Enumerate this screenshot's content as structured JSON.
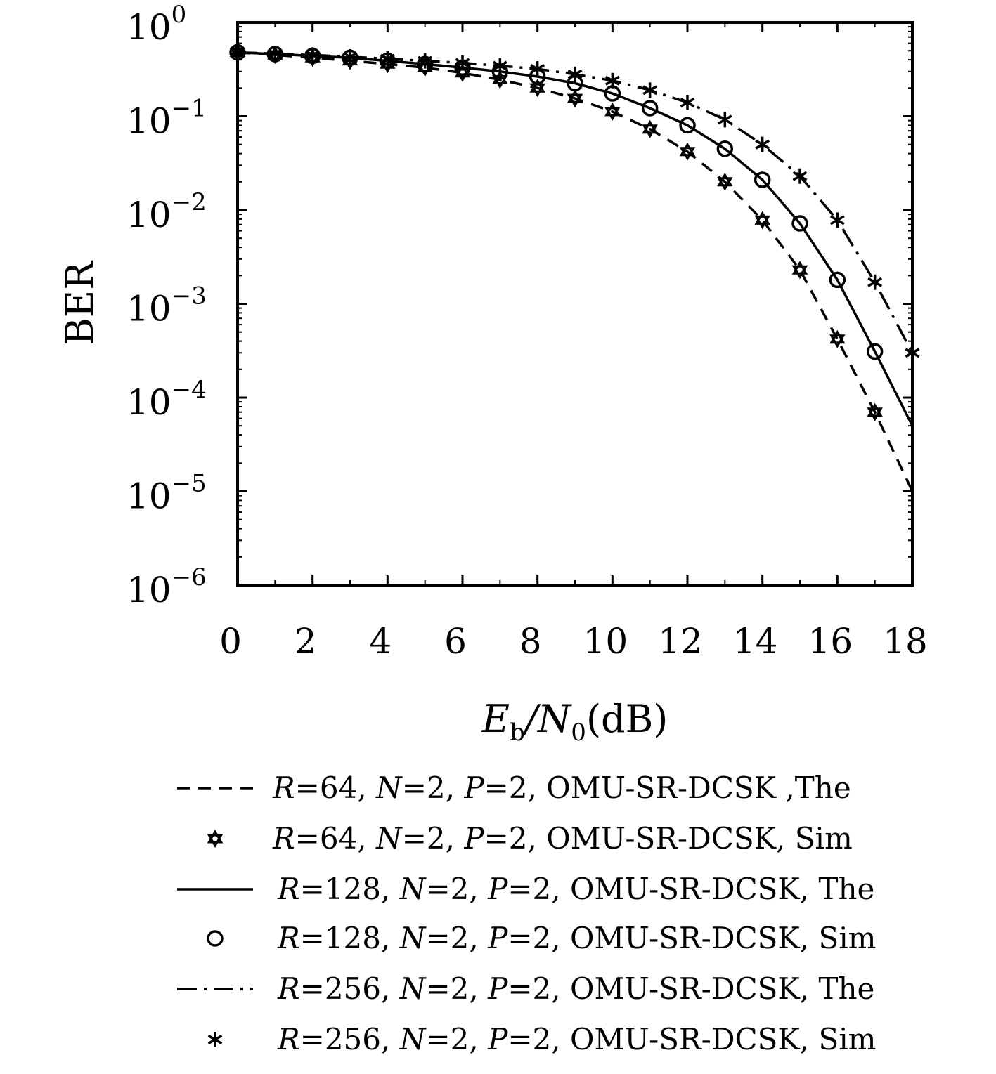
{
  "chart_data": {
    "type": "line",
    "title": "",
    "xlabel": "E_b/N_0(dB)",
    "xlabel_parts": {
      "main": "E",
      "sub1": "b",
      "mid": "/N",
      "sub2": "0",
      "tail": "(dB)"
    },
    "ylabel": "BER",
    "yscale": "log",
    "xlim": [
      0,
      18
    ],
    "ylim": [
      1e-06,
      1
    ],
    "x_ticks": [
      "0",
      "2",
      "4",
      "6",
      "8",
      "10",
      "12",
      "14",
      "16",
      "18"
    ],
    "y_ticks": [
      {
        "base": "10",
        "exp": "0"
      },
      {
        "base": "10",
        "exp": "−1"
      },
      {
        "base": "10",
        "exp": "−2"
      },
      {
        "base": "10",
        "exp": "−3"
      },
      {
        "base": "10",
        "exp": "−4"
      },
      {
        "base": "10",
        "exp": "−5"
      },
      {
        "base": "10",
        "exp": "−6"
      }
    ],
    "grid": false,
    "legend_position": "below",
    "series": [
      {
        "name": "R=64, N=2, P=2, OMU-SR-DCSK ,The",
        "style": "dashed",
        "x": [
          0,
          1,
          2,
          3,
          4,
          5,
          6,
          7,
          8,
          9,
          10,
          11,
          12,
          13,
          14,
          15,
          16,
          17,
          18
        ],
        "y": [
          0.48,
          0.45,
          0.42,
          0.39,
          0.36,
          0.33,
          0.29,
          0.245,
          0.2,
          0.155,
          0.112,
          0.073,
          0.042,
          0.02,
          0.0078,
          0.0023,
          0.00042,
          7e-05,
          1e-05
        ]
      },
      {
        "name": "R=64, N=2, P=2, OMU-SR-DCSK, Sim",
        "style": "marker",
        "marker": "star6",
        "x": [
          0,
          1,
          2,
          3,
          4,
          5,
          6,
          7,
          8,
          9,
          10,
          11,
          12,
          13,
          14,
          15,
          16,
          17
        ],
        "y": [
          0.48,
          0.45,
          0.42,
          0.39,
          0.36,
          0.33,
          0.29,
          0.245,
          0.2,
          0.155,
          0.112,
          0.073,
          0.042,
          0.02,
          0.0078,
          0.0023,
          0.00042,
          7e-05
        ]
      },
      {
        "name": "R=128, N=2, P=2, OMU-SR-DCSK, The",
        "style": "solid",
        "x": [
          0,
          1,
          2,
          3,
          4,
          5,
          6,
          7,
          8,
          9,
          10,
          11,
          12,
          13,
          14,
          15,
          16,
          17,
          18
        ],
        "y": [
          0.48,
          0.46,
          0.44,
          0.42,
          0.39,
          0.36,
          0.33,
          0.3,
          0.265,
          0.225,
          0.175,
          0.122,
          0.08,
          0.045,
          0.021,
          0.0072,
          0.0018,
          0.00031,
          5e-05
        ]
      },
      {
        "name": "R=128, N=2, P=2, OMU-SR-DCSK, Sim",
        "style": "marker",
        "marker": "circle",
        "x": [
          0,
          1,
          2,
          3,
          4,
          5,
          6,
          7,
          8,
          9,
          10,
          11,
          12,
          13,
          14,
          15,
          16,
          17
        ],
        "y": [
          0.48,
          0.46,
          0.44,
          0.42,
          0.39,
          0.36,
          0.33,
          0.3,
          0.265,
          0.225,
          0.175,
          0.122,
          0.08,
          0.045,
          0.021,
          0.0072,
          0.0018,
          0.00031
        ]
      },
      {
        "name": "R=256, N=2, P=2, OMU-SR-DCSK, The",
        "style": "dashdot",
        "x": [
          0,
          1,
          2,
          3,
          4,
          5,
          6,
          7,
          8,
          9,
          10,
          11,
          12,
          13,
          14,
          15,
          16,
          17,
          18
        ],
        "y": [
          0.48,
          0.465,
          0.45,
          0.43,
          0.41,
          0.39,
          0.37,
          0.345,
          0.32,
          0.28,
          0.24,
          0.19,
          0.14,
          0.092,
          0.05,
          0.023,
          0.0078,
          0.0017,
          0.0003
        ]
      },
      {
        "name": "R=256, N=2, P=2, OMU-SR-DCSK, Sim",
        "style": "marker",
        "marker": "asterisk",
        "x": [
          0,
          1,
          2,
          3,
          4,
          5,
          6,
          7,
          8,
          9,
          10,
          11,
          12,
          13,
          14,
          15,
          16,
          17,
          18
        ],
        "y": [
          0.48,
          0.465,
          0.45,
          0.43,
          0.41,
          0.39,
          0.37,
          0.345,
          0.32,
          0.28,
          0.24,
          0.19,
          0.14,
          0.092,
          0.05,
          0.023,
          0.0078,
          0.0017,
          0.0003
        ]
      }
    ],
    "legend": [
      {
        "prefix": "R",
        "text": "=64, ",
        "n": "N",
        "n_text": "=2, ",
        "p": "P",
        "p_text": "=2, OMU-SR-DCSK ,The"
      },
      {
        "prefix": "R",
        "text": "=64, ",
        "n": "N",
        "n_text": "=2, ",
        "p": "P",
        "p_text": "=2, OMU-SR-DCSK, Sim"
      },
      {
        "prefix": "R",
        "text": "=128, ",
        "n": "N",
        "n_text": "=2, ",
        "p": "P",
        "p_text": "=2, OMU-SR-DCSK, The"
      },
      {
        "prefix": "R",
        "text": "=128, ",
        "n": "N",
        "n_text": "=2, ",
        "p": "P",
        "p_text": "=2, OMU-SR-DCSK, Sim"
      },
      {
        "prefix": "R",
        "text": "=256, ",
        "n": "N",
        "n_text": "=2, ",
        "p": "P",
        "p_text": "=2, OMU-SR-DCSK, The"
      },
      {
        "prefix": "R",
        "text": "=256, ",
        "n": "N",
        "n_text": "=2, ",
        "p": "P",
        "p_text": "=2, OMU-SR-DCSK, Sim"
      }
    ]
  }
}
